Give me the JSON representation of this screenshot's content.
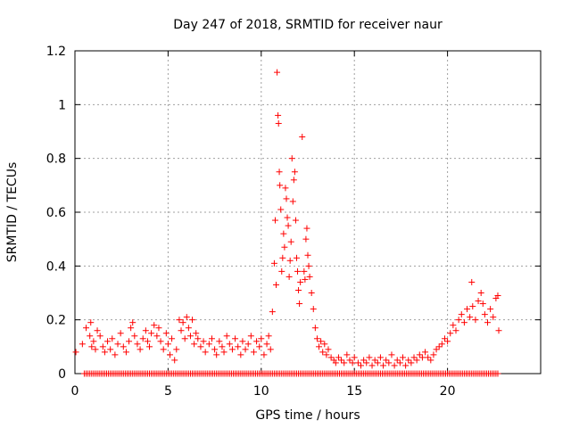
{
  "chart_data": {
    "type": "scatter",
    "title": "Day 247 of 2018, SRMTID for receiver naur",
    "xlabel": "GPS time / hours",
    "ylabel": "SRMTID / TECUs",
    "xlim": [
      0,
      25
    ],
    "ylim": [
      0,
      1.2
    ],
    "xticks": [
      0,
      5,
      10,
      15,
      20
    ],
    "xtick_labels": [
      "0",
      "5",
      "10",
      "15",
      "20"
    ],
    "yticks": [
      0,
      0.2,
      0.4,
      0.6,
      0.8,
      1.0,
      1.2
    ],
    "ytick_labels": [
      "0",
      "0.2",
      "0.4",
      "0.6",
      "0.8",
      "1",
      "1.2"
    ],
    "grid": true,
    "marker": "+",
    "series": [
      {
        "name": "SRMTID",
        "color": "#ff0000",
        "points": [
          [
            0.05,
            0.08
          ],
          [
            0.4,
            0.11
          ],
          [
            0.6,
            0.17
          ],
          [
            0.8,
            0.14
          ],
          [
            0.85,
            0.19
          ],
          [
            0.9,
            0.1
          ],
          [
            1.0,
            0.12
          ],
          [
            1.1,
            0.09
          ],
          [
            1.2,
            0.16
          ],
          [
            1.35,
            0.14
          ],
          [
            1.5,
            0.1
          ],
          [
            1.6,
            0.08
          ],
          [
            1.75,
            0.12
          ],
          [
            1.9,
            0.09
          ],
          [
            2.0,
            0.13
          ],
          [
            2.15,
            0.07
          ],
          [
            2.3,
            0.11
          ],
          [
            2.45,
            0.15
          ],
          [
            2.6,
            0.1
          ],
          [
            2.75,
            0.08
          ],
          [
            2.9,
            0.12
          ],
          [
            3.0,
            0.17
          ],
          [
            3.1,
            0.19
          ],
          [
            3.2,
            0.14
          ],
          [
            3.35,
            0.11
          ],
          [
            3.5,
            0.09
          ],
          [
            3.65,
            0.13
          ],
          [
            3.8,
            0.16
          ],
          [
            3.9,
            0.12
          ],
          [
            4.0,
            0.1
          ],
          [
            4.1,
            0.15
          ],
          [
            4.25,
            0.18
          ],
          [
            4.4,
            0.14
          ],
          [
            4.5,
            0.17
          ],
          [
            4.6,
            0.12
          ],
          [
            4.75,
            0.09
          ],
          [
            4.9,
            0.15
          ],
          [
            5.0,
            0.11
          ],
          [
            5.1,
            0.07
          ],
          [
            5.2,
            0.13
          ],
          [
            5.35,
            0.05
          ],
          [
            5.45,
            0.09
          ],
          [
            5.6,
            0.2
          ],
          [
            5.7,
            0.16
          ],
          [
            5.8,
            0.19
          ],
          [
            5.9,
            0.13
          ],
          [
            6.0,
            0.21
          ],
          [
            6.1,
            0.17
          ],
          [
            6.2,
            0.14
          ],
          [
            6.3,
            0.2
          ],
          [
            6.4,
            0.11
          ],
          [
            6.5,
            0.15
          ],
          [
            6.6,
            0.13
          ],
          [
            6.75,
            0.1
          ],
          [
            6.9,
            0.12
          ],
          [
            7.0,
            0.08
          ],
          [
            7.2,
            0.11
          ],
          [
            7.35,
            0.13
          ],
          [
            7.5,
            0.09
          ],
          [
            7.6,
            0.07
          ],
          [
            7.75,
            0.12
          ],
          [
            7.9,
            0.1
          ],
          [
            8.0,
            0.08
          ],
          [
            8.15,
            0.14
          ],
          [
            8.3,
            0.11
          ],
          [
            8.45,
            0.09
          ],
          [
            8.6,
            0.13
          ],
          [
            8.75,
            0.1
          ],
          [
            8.9,
            0.07
          ],
          [
            9.0,
            0.12
          ],
          [
            9.15,
            0.09
          ],
          [
            9.3,
            0.11
          ],
          [
            9.45,
            0.14
          ],
          [
            9.6,
            0.08
          ],
          [
            9.75,
            0.12
          ],
          [
            9.9,
            0.1
          ],
          [
            10.0,
            0.13
          ],
          [
            10.15,
            0.07
          ],
          [
            10.3,
            0.11
          ],
          [
            10.4,
            0.14
          ],
          [
            10.5,
            0.09
          ],
          [
            10.6,
            0.23
          ],
          [
            10.7,
            0.41
          ],
          [
            10.75,
            0.57
          ],
          [
            10.8,
            0.33
          ],
          [
            10.85,
            1.12
          ],
          [
            10.9,
            0.96
          ],
          [
            10.93,
            0.93
          ],
          [
            10.97,
            0.75
          ],
          [
            11.0,
            0.7
          ],
          [
            11.05,
            0.61
          ],
          [
            11.1,
            0.38
          ],
          [
            11.15,
            0.43
          ],
          [
            11.2,
            0.52
          ],
          [
            11.25,
            0.47
          ],
          [
            11.3,
            0.69
          ],
          [
            11.35,
            0.65
          ],
          [
            11.4,
            0.58
          ],
          [
            11.45,
            0.55
          ],
          [
            11.5,
            0.36
          ],
          [
            11.55,
            0.42
          ],
          [
            11.6,
            0.49
          ],
          [
            11.65,
            0.8
          ],
          [
            11.7,
            0.64
          ],
          [
            11.75,
            0.72
          ],
          [
            11.8,
            0.75
          ],
          [
            11.85,
            0.57
          ],
          [
            11.9,
            0.43
          ],
          [
            11.95,
            0.38
          ],
          [
            12.0,
            0.31
          ],
          [
            12.05,
            0.26
          ],
          [
            12.1,
            0.34
          ],
          [
            12.2,
            0.88
          ],
          [
            12.3,
            0.38
          ],
          [
            12.35,
            0.35
          ],
          [
            12.4,
            0.5
          ],
          [
            12.45,
            0.54
          ],
          [
            12.5,
            0.44
          ],
          [
            12.55,
            0.4
          ],
          [
            12.6,
            0.36
          ],
          [
            12.7,
            0.3
          ],
          [
            12.8,
            0.24
          ],
          [
            12.9,
            0.17
          ],
          [
            13.0,
            0.13
          ],
          [
            13.1,
            0.1
          ],
          [
            13.2,
            0.12
          ],
          [
            13.3,
            0.08
          ],
          [
            13.4,
            0.11
          ],
          [
            13.5,
            0.07
          ],
          [
            13.6,
            0.09
          ],
          [
            13.75,
            0.06
          ],
          [
            13.9,
            0.05
          ],
          [
            14.0,
            0.04
          ],
          [
            14.15,
            0.06
          ],
          [
            14.3,
            0.05
          ],
          [
            14.45,
            0.04
          ],
          [
            14.6,
            0.07
          ],
          [
            14.75,
            0.05
          ],
          [
            14.9,
            0.04
          ],
          [
            15.0,
            0.06
          ],
          [
            15.2,
            0.04
          ],
          [
            15.35,
            0.03
          ],
          [
            15.5,
            0.05
          ],
          [
            15.65,
            0.04
          ],
          [
            15.8,
            0.06
          ],
          [
            15.95,
            0.03
          ],
          [
            16.1,
            0.05
          ],
          [
            16.25,
            0.04
          ],
          [
            16.4,
            0.06
          ],
          [
            16.55,
            0.03
          ],
          [
            16.7,
            0.05
          ],
          [
            16.85,
            0.04
          ],
          [
            17.0,
            0.07
          ],
          [
            17.15,
            0.03
          ],
          [
            17.3,
            0.05
          ],
          [
            17.45,
            0.04
          ],
          [
            17.6,
            0.06
          ],
          [
            17.75,
            0.03
          ],
          [
            17.9,
            0.05
          ],
          [
            18.05,
            0.04
          ],
          [
            18.2,
            0.06
          ],
          [
            18.35,
            0.05
          ],
          [
            18.5,
            0.07
          ],
          [
            18.65,
            0.06
          ],
          [
            18.8,
            0.08
          ],
          [
            18.95,
            0.06
          ],
          [
            19.1,
            0.05
          ],
          [
            19.25,
            0.07
          ],
          [
            19.4,
            0.09
          ],
          [
            19.55,
            0.1
          ],
          [
            19.7,
            0.11
          ],
          [
            19.85,
            0.13
          ],
          [
            20.0,
            0.12
          ],
          [
            20.15,
            0.15
          ],
          [
            20.3,
            0.18
          ],
          [
            20.45,
            0.16
          ],
          [
            20.6,
            0.2
          ],
          [
            20.75,
            0.22
          ],
          [
            20.9,
            0.19
          ],
          [
            21.05,
            0.24
          ],
          [
            21.2,
            0.21
          ],
          [
            21.3,
            0.34
          ],
          [
            21.35,
            0.25
          ],
          [
            21.5,
            0.2
          ],
          [
            21.65,
            0.27
          ],
          [
            21.8,
            0.3
          ],
          [
            21.9,
            0.26
          ],
          [
            22.0,
            0.22
          ],
          [
            22.15,
            0.19
          ],
          [
            22.3,
            0.24
          ],
          [
            22.45,
            0.21
          ],
          [
            22.6,
            0.28
          ],
          [
            22.7,
            0.29
          ],
          [
            22.75,
            0.16
          ]
        ],
        "baseline_points_y": 0,
        "baseline_x_from": 0.5,
        "baseline_x_to": 22.8
      }
    ]
  }
}
